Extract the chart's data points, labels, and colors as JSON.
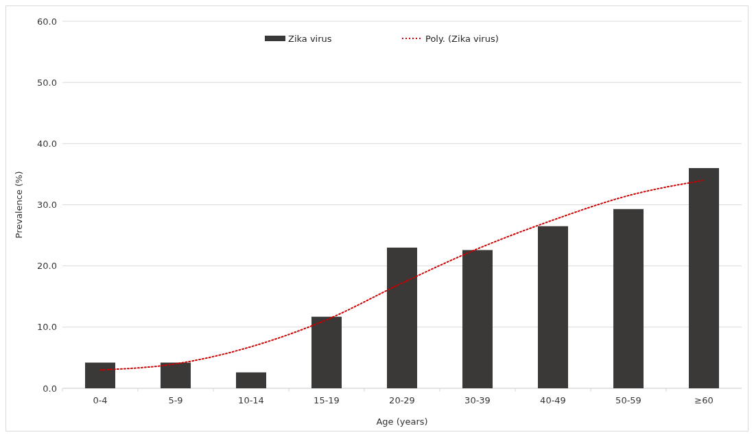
{
  "chart_data": {
    "type": "bar",
    "xlabel": "Age (years)",
    "ylabel": "Prevalence (%)",
    "categories": [
      "0-4",
      "5-9",
      "10-14",
      "15-19",
      "20-29",
      "30-39",
      "40-49",
      "50-59",
      "≥60"
    ],
    "series": [
      {
        "name": "Zika virus",
        "color": "#3a3937",
        "values": [
          4.2,
          4.2,
          2.6,
          11.7,
          23.0,
          22.6,
          26.5,
          29.3,
          36.0
        ]
      },
      {
        "name": "Poly. (Zika virus)",
        "type": "line",
        "color": "#cc0000",
        "line_style": "dotted",
        "marker": "none",
        "values": [
          3.0,
          4.0,
          6.8,
          11.2,
          17.2,
          22.8,
          27.5,
          31.5,
          34.0
        ]
      }
    ],
    "ylim": [
      0,
      60
    ],
    "yticks": [
      {
        "value": 0,
        "label": "0.0"
      },
      {
        "value": 10,
        "label": "10.0"
      },
      {
        "value": 20,
        "label": "20.0"
      },
      {
        "value": 30,
        "label": "30.0"
      },
      {
        "value": 40,
        "label": "40.0"
      },
      {
        "value": 50,
        "label": "50.0"
      },
      {
        "value": 60,
        "label": "60.0"
      }
    ],
    "grid": "y",
    "legend": "top"
  }
}
